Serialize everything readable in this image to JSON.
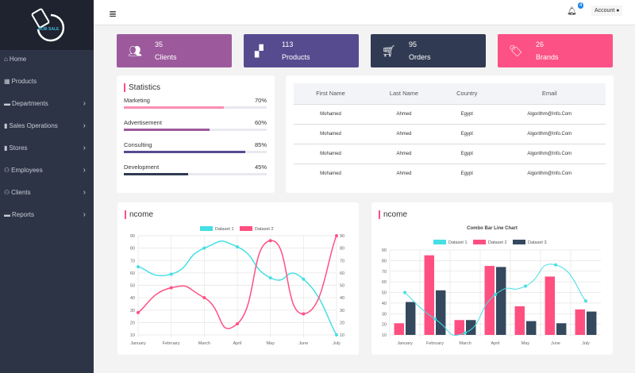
{
  "sidebar": {
    "logo_text": "MOB SALE",
    "items": [
      {
        "label": "Home",
        "icon": "home-icon",
        "chevron": false
      },
      {
        "label": "Products",
        "icon": "grid-icon",
        "chevron": false
      },
      {
        "label": "Departments",
        "icon": "inbox-icon",
        "chevron": true
      },
      {
        "label": "Sales Operations",
        "icon": "file-icon",
        "chevron": true
      },
      {
        "label": "Stores",
        "icon": "file-icon",
        "chevron": true
      },
      {
        "label": "Employees",
        "icon": "users-icon",
        "chevron": true
      },
      {
        "label": "Clients",
        "icon": "users-icon",
        "chevron": true
      },
      {
        "label": "Reports",
        "icon": "folder-icon",
        "chevron": true
      }
    ]
  },
  "header": {
    "menu_icon": "≣",
    "notifications": "4",
    "account": "Account"
  },
  "cards": [
    {
      "value": "35",
      "label": "Clients",
      "icon": "users-icon",
      "color": "#9c5a9c"
    },
    {
      "value": "113",
      "label": "Products",
      "icon": "boxes-icon",
      "color": "#574b90"
    },
    {
      "value": "95",
      "label": "Orders",
      "icon": "cart-icon",
      "color": "#303a52"
    },
    {
      "value": "26",
      "label": "Brands",
      "icon": "tag-icon",
      "color": "#fc5185"
    }
  ],
  "statistics": {
    "title": "Statistics",
    "items": [
      {
        "label": "Marketing",
        "percent": 70,
        "pct_text": "70%",
        "color": "#f88fb0"
      },
      {
        "label": "Advertisement",
        "percent": 60,
        "pct_text": "60%",
        "color": "#9c5a9c"
      },
      {
        "label": "Consulting",
        "percent": 85,
        "pct_text": "85%",
        "color": "#574b90"
      },
      {
        "label": "Development",
        "percent": 45,
        "pct_text": "45%",
        "color": "#303a52"
      }
    ]
  },
  "table": {
    "headers": [
      "First Name",
      "Last Name",
      "Country",
      "Email"
    ],
    "rows": [
      [
        "Mohamed",
        "Ahmed",
        "Egypt",
        "Algorithm@Info.Com"
      ],
      [
        "Mohamed",
        "Ahmed",
        "Egypt",
        "Algorithm@Info.Com"
      ],
      [
        "Mohamed",
        "Ahmed",
        "Egypt",
        "Algorithm@Info.Com"
      ],
      [
        "Mohamed",
        "Ahmed",
        "Egypt",
        "Algorithm@Info.Com"
      ]
    ]
  },
  "chart_data": [
    {
      "type": "line",
      "panel_title": "ncome",
      "title": "",
      "categories": [
        "January",
        "February",
        "March",
        "April",
        "May",
        "June",
        "July"
      ],
      "series": [
        {
          "name": "Dataset 1",
          "values": [
            65,
            59,
            80,
            81,
            56,
            55,
            10
          ],
          "color": "#45dfe4"
        },
        {
          "name": "Dataset 2",
          "values": [
            28,
            48,
            40,
            19,
            86,
            27,
            90
          ],
          "color": "#ff4f81"
        }
      ],
      "ylim": [
        10,
        90
      ],
      "yticks": [
        10,
        20,
        30,
        40,
        50,
        60,
        70,
        80,
        90
      ],
      "legend": "top",
      "grid": true
    },
    {
      "type": "bar",
      "panel_title": "ncome",
      "title": "Combo Bar Line Chart",
      "categories": [
        "January",
        "February",
        "March",
        "April",
        "May",
        "June",
        "July"
      ],
      "series": [
        {
          "name": "Dataset 1",
          "type": "line",
          "values": [
            50,
            25,
            12,
            48,
            56,
            76,
            42
          ],
          "color": "#45dfe4"
        },
        {
          "name": "Dataset 2",
          "type": "bar",
          "values": [
            21,
            85,
            24,
            75,
            37,
            65,
            34
          ],
          "color": "#ff4f81"
        },
        {
          "name": "Dataset 3",
          "type": "bar",
          "values": [
            41,
            52,
            24,
            74,
            23,
            21,
            32
          ],
          "color": "#34495e"
        }
      ],
      "ylim": [
        10,
        90
      ],
      "yticks": [
        10,
        20,
        30,
        40,
        50,
        60,
        70,
        80,
        90
      ],
      "legend": "top",
      "grid": true
    }
  ]
}
